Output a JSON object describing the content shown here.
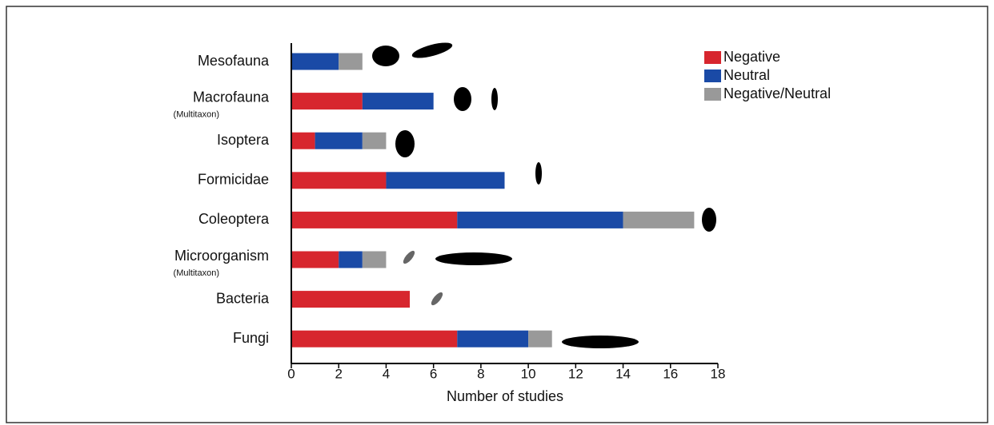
{
  "chart_data": {
    "type": "stacked-bar-horizontal",
    "categories": [
      "Mesofauna",
      "Macrofauna",
      "Isoptera",
      "Formicidae",
      "Coleoptera",
      "Microorganism",
      "Bacteria",
      "Fungi"
    ],
    "category_sublabels": [
      null,
      "(Multitaxon)",
      null,
      null,
      null,
      "(Multitaxon)",
      null,
      null
    ],
    "series": [
      {
        "name": "Negative",
        "color": "#d7262e",
        "values": [
          0,
          3,
          1,
          4,
          7,
          2,
          5,
          7
        ]
      },
      {
        "name": "Neutral",
        "color": "#1a4aa6",
        "values": [
          2,
          3,
          2,
          5,
          7,
          1,
          0,
          3
        ]
      },
      {
        "name": "Negative/Neutral",
        "color": "#999999",
        "values": [
          1,
          0,
          1,
          0,
          3,
          1,
          0,
          1
        ]
      }
    ],
    "x_label": "Number of studies",
    "xlim": [
      0,
      18
    ],
    "xticks": [
      0,
      2,
      4,
      6,
      8,
      10,
      12,
      14,
      16,
      18
    ],
    "legend": "upper right"
  }
}
